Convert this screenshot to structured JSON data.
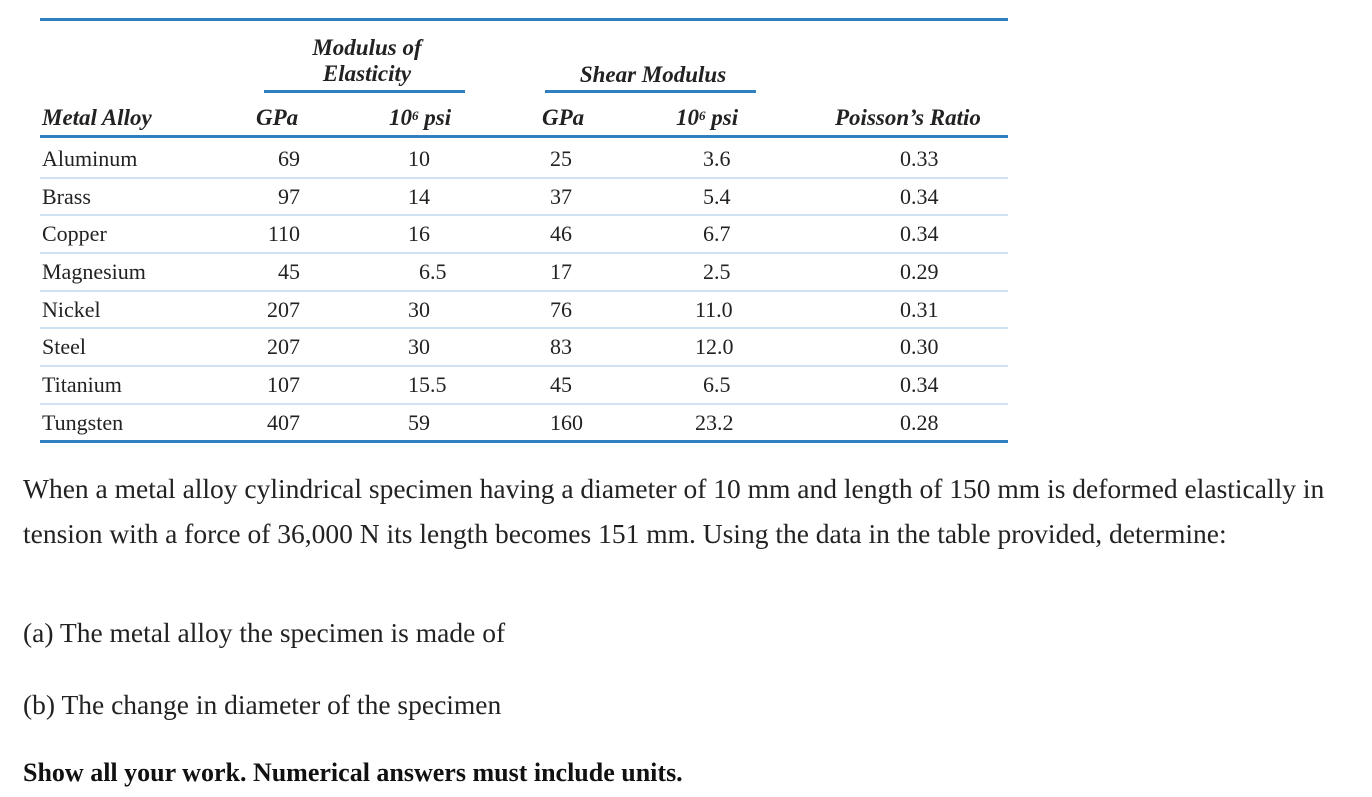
{
  "table": {
    "group_headers": {
      "modulus_line1": "Modulus of",
      "modulus_line2": "Elasticity",
      "shear": "Shear Modulus"
    },
    "columns": {
      "alloy": "Metal Alloy",
      "e_gpa": "GPa",
      "e_psi_base": "10",
      "e_psi_exp": "6",
      "e_psi_unit": " psi",
      "g_gpa": "GPa",
      "g_psi_base": "10",
      "g_psi_exp": "6",
      "g_psi_unit": " psi",
      "poisson": "Poisson’s Ratio"
    },
    "rows": [
      {
        "alloy": "Aluminum",
        "e_gpa": "69",
        "e_psi": "10",
        "g_gpa": "25",
        "g_psi": "3.6",
        "poisson": "0.33"
      },
      {
        "alloy": "Brass",
        "e_gpa": "97",
        "e_psi": "14",
        "g_gpa": "37",
        "g_psi": "5.4",
        "poisson": "0.34"
      },
      {
        "alloy": "Copper",
        "e_gpa": "110",
        "e_psi": "16",
        "g_gpa": "46",
        "g_psi": "6.7",
        "poisson": "0.34"
      },
      {
        "alloy": "Magnesium",
        "e_gpa": "45",
        "e_psi": "6.5",
        "g_gpa": "17",
        "g_psi": "2.5",
        "poisson": "0.29"
      },
      {
        "alloy": "Nickel",
        "e_gpa": "207",
        "e_psi": "30",
        "g_gpa": "76",
        "g_psi": "11.0",
        "poisson": "0.31"
      },
      {
        "alloy": "Steel",
        "e_gpa": "207",
        "e_psi": "30",
        "g_gpa": "83",
        "g_psi": "12.0",
        "poisson": "0.30"
      },
      {
        "alloy": "Titanium",
        "e_gpa": "107",
        "e_psi": "15.5",
        "g_gpa": "45",
        "g_psi": "6.5",
        "poisson": "0.34"
      },
      {
        "alloy": "Tungsten",
        "e_gpa": "407",
        "e_psi": "59",
        "g_gpa": "160",
        "g_psi": "23.2",
        "poisson": "0.28"
      }
    ],
    "colors": {
      "rule": "#2f7fc1",
      "row_divider": "#cfe2f3"
    }
  },
  "question": {
    "prompt": "When a metal alloy cylindrical specimen having a diameter of 10 mm and length of 150 mm  is deformed elastically in tension with a force of 36,000 N its length becomes 151 mm. Using the data in the table provided, determine:",
    "part_a": "(a) The metal alloy the specimen is made of",
    "part_b": "(b) The change in diameter of the specimen",
    "instruction": "Show all your work. Numerical answers must include units."
  }
}
